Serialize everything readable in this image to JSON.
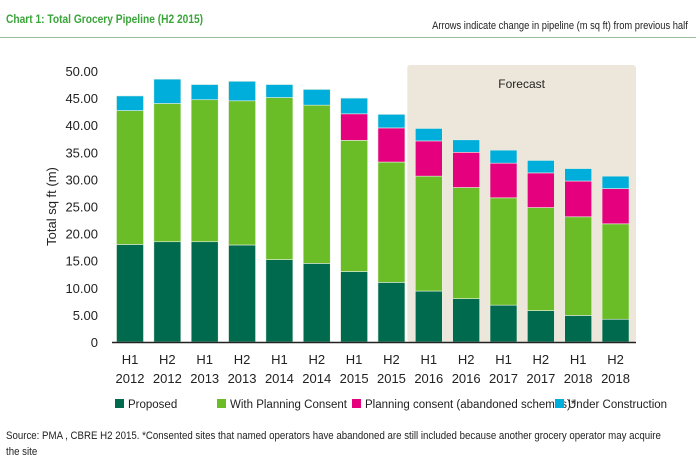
{
  "header": {
    "title": "Chart 1: Total Grocery Pipeline (H2 2015)",
    "note": "Arrows indicate change in pipeline (m sq ft) from previous half"
  },
  "footer": {
    "source": "Source: PMA , CBRE H2 2015. *Consented sites that named operators have abandoned are still included because another grocery operator may acquire the site"
  },
  "chart_data": {
    "type": "bar",
    "stacked": true,
    "ylabel": "Total sq ft (m)",
    "ylim": [
      0,
      50
    ],
    "yticks": [
      "0",
      "5.00",
      "10.00",
      "15.00",
      "20.00",
      "25.00",
      "30.00",
      "35.00",
      "40.00",
      "45.00",
      "50.00"
    ],
    "categories": [
      [
        "H1",
        "2012"
      ],
      [
        "H2",
        "2012"
      ],
      [
        "H1",
        "2013"
      ],
      [
        "H2",
        "2013"
      ],
      [
        "H1",
        "2014"
      ],
      [
        "H2",
        "2014"
      ],
      [
        "H1",
        "2015"
      ],
      [
        "H2",
        "2015"
      ],
      [
        "H1",
        "2016"
      ],
      [
        "H2",
        "2016"
      ],
      [
        "H1",
        "2017"
      ],
      [
        "H2",
        "2017"
      ],
      [
        "H1",
        "2018"
      ],
      [
        "H2",
        "2018"
      ]
    ],
    "forecast_label": "Forecast",
    "forecast_from_index": 8,
    "series": [
      {
        "name": "Proposed",
        "color": "#006a4e",
        "values": [
          18.0,
          18.5,
          18.5,
          17.9,
          15.2,
          14.5,
          13.0,
          11.0,
          9.4,
          8.0,
          6.8,
          5.8,
          4.9,
          4.2
        ]
      },
      {
        "name": "With Planning Consent",
        "color": "#6abd27",
        "values": [
          24.7,
          25.5,
          26.2,
          26.6,
          29.9,
          29.2,
          24.2,
          22.2,
          21.2,
          20.5,
          19.8,
          19.0,
          18.2,
          17.6
        ]
      },
      {
        "name": "Planning consent (abandoned schemes)*",
        "color": "#e5007e",
        "values": [
          0,
          0,
          0,
          0,
          0,
          0,
          4.9,
          6.3,
          6.5,
          6.5,
          6.4,
          6.4,
          6.6,
          6.5
        ]
      },
      {
        "name": "Under Construction",
        "color": "#00aedb",
        "values": [
          2.7,
          4.5,
          2.8,
          3.6,
          2.4,
          2.9,
          2.9,
          2.5,
          2.3,
          2.3,
          2.4,
          2.3,
          2.3,
          2.3
        ]
      }
    ],
    "grid": false,
    "legend_position": "bottom"
  }
}
